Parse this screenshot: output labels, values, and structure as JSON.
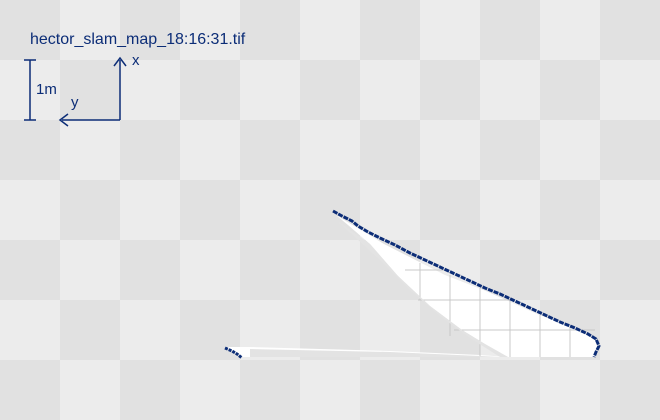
{
  "map": {
    "filename": "hector_slam_map_18:16:31.tif",
    "scale_label": "1m",
    "axis_x_label": "x",
    "axis_y_label": "y"
  },
  "colors": {
    "checker_light": "#ececec",
    "checker_dark": "#e1e1e1",
    "free_space": "#ffffff",
    "grid_line": "#c8c8c8",
    "obstacle": "#0c2d77"
  }
}
